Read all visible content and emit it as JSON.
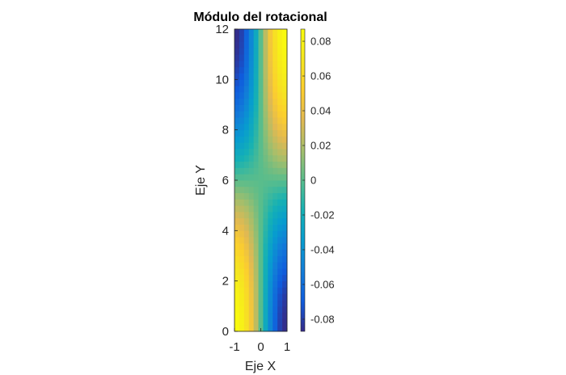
{
  "chart_data": {
    "type": "heatmap",
    "title": "Módulo del rotacional",
    "xlabel": "Eje X",
    "ylabel": "Eje Y",
    "xlim": [
      -1,
      1
    ],
    "ylim": [
      0,
      12
    ],
    "x_ticks": [
      "-1",
      "0",
      "1"
    ],
    "y_ticks": [
      "0",
      "2",
      "4",
      "6",
      "8",
      "10",
      "12"
    ],
    "colormap": "parula",
    "colorbar": {
      "clim": [
        -0.087,
        0.087
      ],
      "ticks": [
        "-0.08",
        "-0.06",
        "-0.04",
        "-0.02",
        "0",
        "0.02",
        "0.04",
        "0.06",
        "0.08"
      ],
      "tick_values": [
        -0.08,
        -0.06,
        -0.04,
        -0.02,
        0,
        0.02,
        0.04,
        0.06,
        0.08
      ]
    },
    "field_description": "value decreases across x at bottom (high at x=-1), increases across x at top (high at x=1); ~0 near y=6",
    "grid_size": [
      11,
      48
    ],
    "max_abs_value": 0.087,
    "grid": false
  }
}
